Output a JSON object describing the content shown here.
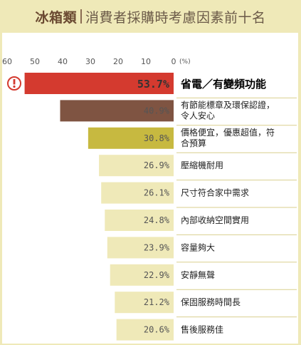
{
  "title": {
    "bold": "冰箱類",
    "rest": "消費者採購時考慮因素前十名"
  },
  "chart_data": {
    "type": "bar",
    "orientation": "horizontal",
    "x_direction": "right-to-left",
    "xlim": [
      0,
      60
    ],
    "x_ticks": [
      "60",
      "50",
      "40",
      "30",
      "20",
      "10",
      "0"
    ],
    "x_unit": "(%)",
    "categories": [
      [
        "省電／有變頻功能"
      ],
      [
        "有節能標章及環保認證，",
        "令人安心"
      ],
      [
        "價格便宜，優惠超值，符",
        "合預算"
      ],
      [
        "壓縮機耐用"
      ],
      [
        "尺寸符合家中需求"
      ],
      [
        "內部收納空間實用"
      ],
      [
        "容量夠大"
      ],
      [
        "安靜無聲"
      ],
      [
        "保固服務時間長"
      ],
      [
        "售後服務佳"
      ]
    ],
    "values": [
      53.7,
      40.9,
      30.8,
      26.9,
      26.1,
      24.8,
      23.9,
      22.9,
      21.2,
      20.6
    ],
    "value_labels": [
      "53.7%",
      "40.9%",
      "30.8%",
      "26.9%",
      "26.1%",
      "24.8%",
      "23.9%",
      "22.9%",
      "21.2%",
      "20.6%"
    ],
    "bar_colors": [
      "#d43a2f",
      "#7f5442",
      "#c7b940",
      "#efe9b8",
      "#efe9b8",
      "#efe9b8",
      "#efe9b8",
      "#efe9b8",
      "#efe9b8",
      "#efe9b8"
    ],
    "highlight_icon": "exclamation-circle-icon",
    "grid": false
  },
  "colors": {
    "background": "#efe9b8",
    "accent_red": "#d43a2f",
    "separator": "#d9cf8e"
  }
}
